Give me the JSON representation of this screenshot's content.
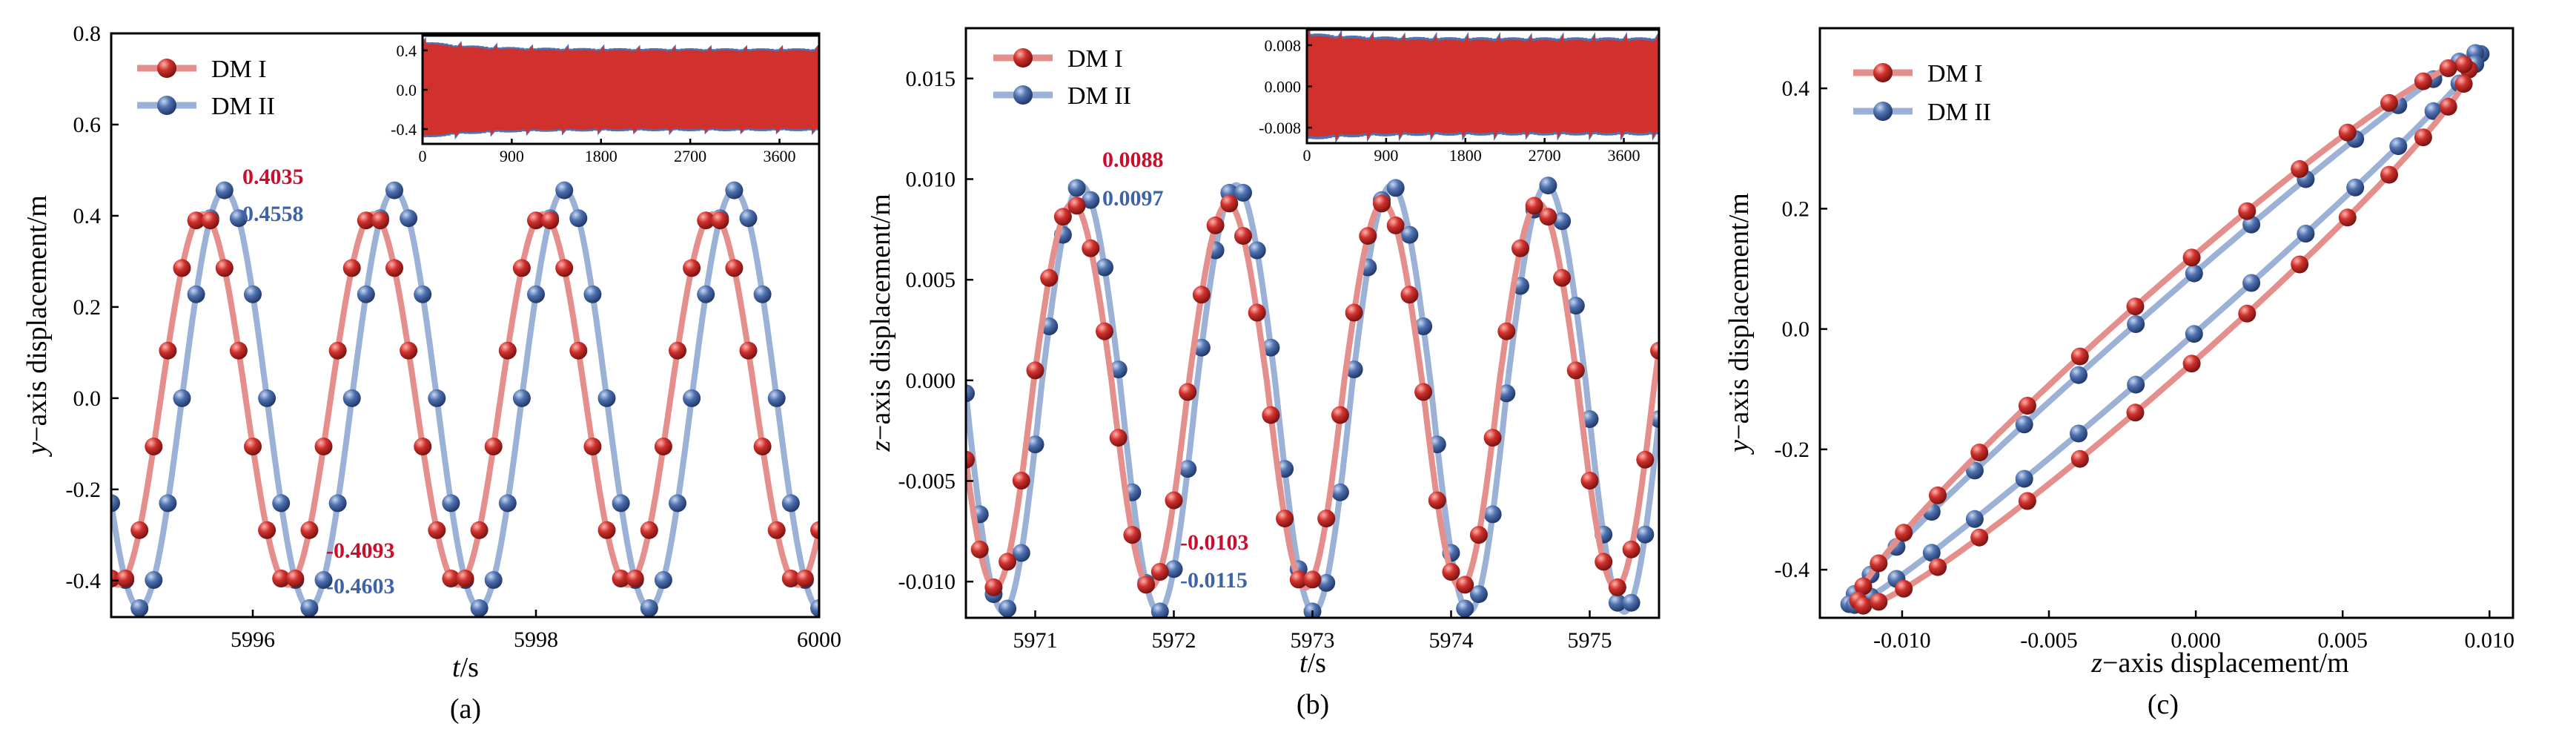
{
  "colors": {
    "dm1": "#d0312d",
    "dm1_line": "#e58f8c",
    "dm2": "#4f72b0",
    "dm2_line": "#9cb1d6",
    "ann_red": "#c8102e",
    "ann_blue": "#3f63a8"
  },
  "legend": [
    "DM I",
    "DM II"
  ],
  "chart_data": [
    {
      "id": "a",
      "type": "line",
      "caption": "(a)",
      "xlabel_italic": "t",
      "xlabel_rest": "/s",
      "ylabel_italic": "y",
      "ylabel_rest": "−axis displacement/m",
      "xlim": [
        5995,
        6000
      ],
      "ylim": [
        -0.48,
        0.8
      ],
      "xticks": [
        "5996",
        "5998",
        "6000"
      ],
      "yticks": [
        "-0.4",
        "-0.2",
        "0.0",
        "0.2",
        "0.4",
        "0.6",
        "0.8"
      ],
      "series": [
        {
          "name": "DM I",
          "amplitude_max": 0.4035,
          "amplitude_min": -0.4093,
          "period_s": 1.2,
          "peak_time_s": 5995.65
        },
        {
          "name": "DM II",
          "amplitude_max": 0.4558,
          "amplitude_min": -0.4603,
          "period_s": 1.2,
          "peak_time_s": 5995.8
        }
      ],
      "annotations": [
        "0.4035",
        "0.4558",
        "-0.4093",
        "-0.4603"
      ],
      "inset": {
        "xticks": [
          "0",
          "900",
          "1800",
          "2700",
          "3600"
        ],
        "yticks": [
          "0.4",
          "0.0",
          "-0.4"
        ],
        "xlim": [
          0,
          4000
        ],
        "ylim": [
          -0.55,
          0.55
        ]
      }
    },
    {
      "id": "b",
      "type": "line",
      "caption": "(b)",
      "xlabel_italic": "t",
      "xlabel_rest": "/s",
      "ylabel_italic": "z",
      "ylabel_rest": "−axis displacement/m",
      "xlim": [
        5970.5,
        5975.5
      ],
      "ylim": [
        -0.0118,
        0.0175
      ],
      "xticks": [
        "5971",
        "5972",
        "5973",
        "5974",
        "5975"
      ],
      "yticks": [
        "-0.010",
        "-0.005",
        "0.000",
        "0.005",
        "0.010",
        "0.015"
      ],
      "series": [
        {
          "name": "DM I",
          "amplitude_max": 0.0088,
          "amplitude_min": -0.0103,
          "period_s": 1.12,
          "peak_time_s": 5971.27
        },
        {
          "name": "DM II",
          "amplitude_max": 0.0097,
          "amplitude_min": -0.0115,
          "period_s": 1.12,
          "peak_time_s": 5971.33
        }
      ],
      "annotations": [
        "0.0088",
        "0.0097",
        "-0.0103",
        "-0.0115"
      ],
      "inset": {
        "xticks": [
          "0",
          "900",
          "1800",
          "2700",
          "3600"
        ],
        "yticks": [
          "0.008",
          "0.000",
          "-0.008"
        ],
        "xlim": [
          0,
          4000
        ],
        "ylim": [
          -0.011,
          0.011
        ]
      }
    },
    {
      "id": "c",
      "type": "line",
      "caption": "(c)",
      "xlabel_italic": "z",
      "xlabel_rest": "−axis displacement/m",
      "ylabel_italic": "y",
      "ylabel_rest": "−axis displacement/m",
      "xlim": [
        -0.0128,
        0.0108
      ],
      "ylim": [
        -0.48,
        0.5
      ],
      "xticks": [
        "-0.010",
        "-0.005",
        "0.000",
        "0.005",
        "0.010"
      ],
      "yticks": [
        "-0.4",
        "-0.2",
        "0.0",
        "0.2",
        "0.4"
      ],
      "series": [
        {
          "name": "DM I",
          "z_range": [
            -0.0115,
            0.0093
          ],
          "y_range": [
            -0.46,
            0.44
          ],
          "loop_width": 0.09
        },
        {
          "name": "DM II",
          "z_range": [
            -0.0118,
            0.0097
          ],
          "y_range": [
            -0.46,
            0.46
          ],
          "loop_width": 0.05
        }
      ]
    }
  ]
}
